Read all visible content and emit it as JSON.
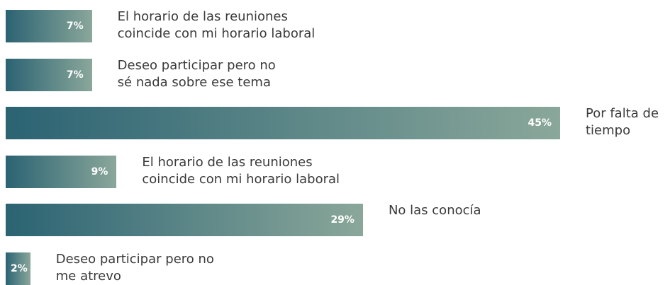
{
  "chart_data": {
    "type": "bar",
    "orientation": "horizontal",
    "categories": [
      "El horario de las reuniones\ncoincide con mi horario laboral",
      "Deseo participar pero no\nsé nada sobre ese tema",
      "Por falta de\ntiempo",
      "El horario de las reuniones\ncoincide con mi horario laboral",
      "No las conocía",
      "Deseo participar pero no\nme atrevo"
    ],
    "values": [
      7,
      7,
      45,
      9,
      29,
      2
    ],
    "value_labels": [
      "7%",
      "7%",
      "45%",
      "9%",
      "29%",
      "2%"
    ]
  }
}
